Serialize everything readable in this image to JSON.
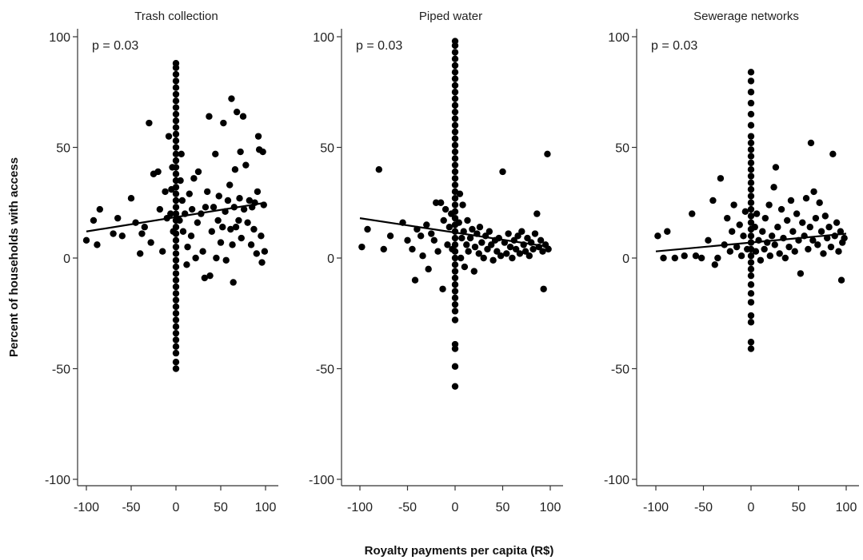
{
  "y_axis_title": "Percent of households with access",
  "x_axis_title": "Royalty payments per capita (R$)",
  "chart_data": [
    {
      "type": "scatter",
      "title": "Trash collection",
      "annotation": "p = 0.03",
      "xlim": [
        -100,
        100
      ],
      "ylim": [
        -100,
        100
      ],
      "xticks": [
        -100,
        -50,
        0,
        50,
        100
      ],
      "yticks": [
        100,
        50,
        0,
        -50,
        -100
      ],
      "fit_line": {
        "x": [
          -100,
          100
        ],
        "y": [
          12,
          25
        ]
      },
      "zero_column": [
        -50,
        -47,
        -43,
        -40,
        -37,
        -34,
        -31,
        -28,
        -25,
        -22,
        -19,
        -16,
        -13,
        -10,
        -7,
        -4,
        -1,
        2,
        5,
        8,
        11,
        14,
        17,
        20,
        23,
        26,
        29,
        32,
        35,
        38,
        41,
        44,
        47,
        50,
        53,
        56,
        59,
        62,
        65,
        68,
        71,
        74,
        77,
        80,
        83,
        86,
        88
      ],
      "points": [
        [
          -100,
          8
        ],
        [
          -92,
          17
        ],
        [
          -88,
          6
        ],
        [
          -85,
          22
        ],
        [
          -70,
          11
        ],
        [
          -65,
          18
        ],
        [
          -60,
          10
        ],
        [
          -50,
          27
        ],
        [
          -45,
          16
        ],
        [
          -40,
          2
        ],
        [
          -38,
          11
        ],
        [
          -35,
          14
        ],
        [
          -30,
          61
        ],
        [
          -28,
          7
        ],
        [
          -25,
          38
        ],
        [
          -20,
          39
        ],
        [
          -18,
          22
        ],
        [
          -15,
          3
        ],
        [
          -12,
          30
        ],
        [
          -10,
          18
        ],
        [
          -8,
          55
        ],
        [
          -6,
          20
        ],
        [
          -5,
          31
        ],
        [
          -4,
          41
        ],
        [
          -3,
          12
        ],
        [
          4,
          17
        ],
        [
          5,
          35
        ],
        [
          6,
          47
        ],
        [
          7,
          26
        ],
        [
          8,
          12
        ],
        [
          10,
          20
        ],
        [
          12,
          -3
        ],
        [
          13,
          5
        ],
        [
          15,
          29
        ],
        [
          17,
          10
        ],
        [
          18,
          22
        ],
        [
          20,
          36
        ],
        [
          22,
          0
        ],
        [
          24,
          16
        ],
        [
          25,
          39
        ],
        [
          28,
          20
        ],
        [
          30,
          3
        ],
        [
          32,
          -9
        ],
        [
          33,
          23
        ],
        [
          35,
          30
        ],
        [
          37,
          64
        ],
        [
          38,
          -8
        ],
        [
          40,
          12
        ],
        [
          42,
          23
        ],
        [
          44,
          47
        ],
        [
          45,
          0
        ],
        [
          47,
          17
        ],
        [
          48,
          28
        ],
        [
          50,
          7
        ],
        [
          52,
          14
        ],
        [
          53,
          61
        ],
        [
          55,
          21
        ],
        [
          56,
          -1
        ],
        [
          58,
          26
        ],
        [
          60,
          33
        ],
        [
          61,
          13
        ],
        [
          62,
          72
        ],
        [
          63,
          6
        ],
        [
          64,
          -11
        ],
        [
          65,
          23
        ],
        [
          66,
          40
        ],
        [
          67,
          14
        ],
        [
          68,
          66
        ],
        [
          70,
          17
        ],
        [
          71,
          27
        ],
        [
          72,
          48
        ],
        [
          73,
          9
        ],
        [
          75,
          64
        ],
        [
          76,
          22
        ],
        [
          78,
          42
        ],
        [
          80,
          16
        ],
        [
          82,
          26
        ],
        [
          84,
          6
        ],
        [
          85,
          23
        ],
        [
          87,
          13
        ],
        [
          88,
          25
        ],
        [
          90,
          2
        ],
        [
          91,
          30
        ],
        [
          92,
          55
        ],
        [
          93,
          49
        ],
        [
          95,
          10
        ],
        [
          96,
          -2
        ],
        [
          97,
          48
        ],
        [
          98,
          24
        ],
        [
          99,
          3
        ]
      ]
    },
    {
      "type": "scatter",
      "title": "Piped water",
      "annotation": "p = 0.03",
      "xlim": [
        -100,
        100
      ],
      "ylim": [
        -100,
        100
      ],
      "xticks": [
        -100,
        -50,
        0,
        50,
        100
      ],
      "yticks": [
        100,
        50,
        0,
        -50,
        -100
      ],
      "fit_line": {
        "x": [
          -100,
          100
        ],
        "y": [
          18,
          5
        ]
      },
      "zero_column": [
        -58,
        -49,
        -41,
        -39,
        -28,
        -24,
        -21,
        -18,
        -15,
        -12,
        -9,
        -6,
        -3,
        0,
        3,
        6,
        9,
        12,
        15,
        18,
        21,
        24,
        27,
        30,
        33,
        36,
        39,
        42,
        45,
        48,
        51,
        54,
        57,
        60,
        63,
        66,
        69,
        72,
        75,
        78,
        81,
        84,
        87,
        90,
        93,
        96,
        98
      ],
      "points": [
        [
          -98,
          5
        ],
        [
          -92,
          13
        ],
        [
          -80,
          40
        ],
        [
          -75,
          4
        ],
        [
          -68,
          10
        ],
        [
          -55,
          16
        ],
        [
          -50,
          8
        ],
        [
          -45,
          4
        ],
        [
          -42,
          -10
        ],
        [
          -40,
          13
        ],
        [
          -36,
          10
        ],
        [
          -34,
          1
        ],
        [
          -30,
          15
        ],
        [
          -28,
          -5
        ],
        [
          -25,
          11
        ],
        [
          -22,
          8
        ],
        [
          -20,
          25
        ],
        [
          -18,
          3
        ],
        [
          -15,
          25
        ],
        [
          -13,
          -14
        ],
        [
          -12,
          17
        ],
        [
          -10,
          22
        ],
        [
          -8,
          6
        ],
        [
          -6,
          14
        ],
        [
          -4,
          20
        ],
        [
          -3,
          4
        ],
        [
          4,
          16
        ],
        [
          5,
          29
        ],
        [
          6,
          0
        ],
        [
          7,
          9
        ],
        [
          8,
          24
        ],
        [
          9,
          12
        ],
        [
          10,
          -4
        ],
        [
          12,
          6
        ],
        [
          13,
          17
        ],
        [
          14,
          3
        ],
        [
          16,
          9
        ],
        [
          18,
          13
        ],
        [
          20,
          -6
        ],
        [
          21,
          5
        ],
        [
          23,
          11
        ],
        [
          25,
          2
        ],
        [
          26,
          14
        ],
        [
          28,
          7
        ],
        [
          30,
          0
        ],
        [
          32,
          10
        ],
        [
          34,
          4
        ],
        [
          36,
          12
        ],
        [
          38,
          6
        ],
        [
          40,
          -1
        ],
        [
          42,
          8
        ],
        [
          44,
          3
        ],
        [
          46,
          9
        ],
        [
          48,
          1
        ],
        [
          50,
          39
        ],
        [
          52,
          7
        ],
        [
          54,
          2
        ],
        [
          56,
          11
        ],
        [
          58,
          5
        ],
        [
          60,
          0
        ],
        [
          62,
          8
        ],
        [
          64,
          4
        ],
        [
          66,
          10
        ],
        [
          68,
          2
        ],
        [
          70,
          12
        ],
        [
          72,
          6
        ],
        [
          74,
          3
        ],
        [
          76,
          9
        ],
        [
          78,
          1
        ],
        [
          80,
          7
        ],
        [
          82,
          4
        ],
        [
          84,
          11
        ],
        [
          86,
          20
        ],
        [
          88,
          5
        ],
        [
          90,
          8
        ],
        [
          92,
          3
        ],
        [
          93,
          -14
        ],
        [
          95,
          6
        ],
        [
          97,
          47
        ],
        [
          98,
          4
        ]
      ]
    },
    {
      "type": "scatter",
      "title": "Sewerage networks",
      "annotation": "p = 0.03",
      "xlim": [
        -100,
        100
      ],
      "ylim": [
        -100,
        100
      ],
      "xticks": [
        -100,
        -50,
        0,
        50,
        100
      ],
      "yticks": [
        100,
        50,
        0,
        -50,
        -100
      ],
      "fit_line": {
        "x": [
          -100,
          100
        ],
        "y": [
          3,
          11
        ]
      },
      "zero_column": [
        -41,
        -38,
        -29,
        -26,
        -20,
        -16,
        -12,
        -8,
        -5,
        -2,
        1,
        4,
        7,
        10,
        13,
        16,
        19,
        22,
        25,
        28,
        31,
        34,
        37,
        40,
        43,
        46,
        49,
        52,
        55,
        60,
        65,
        70,
        75,
        80,
        84
      ],
      "points": [
        [
          -98,
          10
        ],
        [
          -92,
          0
        ],
        [
          -88,
          12
        ],
        [
          -80,
          0
        ],
        [
          -70,
          1
        ],
        [
          -62,
          20
        ],
        [
          -58,
          1
        ],
        [
          -52,
          0
        ],
        [
          -45,
          8
        ],
        [
          -40,
          26
        ],
        [
          -38,
          -3
        ],
        [
          -35,
          0
        ],
        [
          -32,
          36
        ],
        [
          -28,
          6
        ],
        [
          -25,
          18
        ],
        [
          -22,
          3
        ],
        [
          -20,
          12
        ],
        [
          -18,
          24
        ],
        [
          -15,
          5
        ],
        [
          -12,
          15
        ],
        [
          -10,
          1
        ],
        [
          -8,
          10
        ],
        [
          -6,
          21
        ],
        [
          -4,
          4
        ],
        [
          4,
          14
        ],
        [
          5,
          3
        ],
        [
          6,
          20
        ],
        [
          8,
          8
        ],
        [
          10,
          -1
        ],
        [
          12,
          12
        ],
        [
          14,
          4
        ],
        [
          15,
          18
        ],
        [
          17,
          7
        ],
        [
          19,
          24
        ],
        [
          20,
          1
        ],
        [
          22,
          10
        ],
        [
          24,
          32
        ],
        [
          25,
          6
        ],
        [
          26,
          41
        ],
        [
          28,
          14
        ],
        [
          30,
          2
        ],
        [
          32,
          22
        ],
        [
          34,
          9
        ],
        [
          36,
          0
        ],
        [
          38,
          17
        ],
        [
          40,
          5
        ],
        [
          42,
          26
        ],
        [
          44,
          12
        ],
        [
          46,
          3
        ],
        [
          48,
          20
        ],
        [
          50,
          8
        ],
        [
          52,
          -7
        ],
        [
          54,
          16
        ],
        [
          56,
          10
        ],
        [
          58,
          27
        ],
        [
          60,
          4
        ],
        [
          62,
          14
        ],
        [
          63,
          52
        ],
        [
          65,
          8
        ],
        [
          66,
          30
        ],
        [
          68,
          18
        ],
        [
          70,
          6
        ],
        [
          72,
          25
        ],
        [
          74,
          12
        ],
        [
          76,
          2
        ],
        [
          78,
          19
        ],
        [
          80,
          9
        ],
        [
          82,
          14
        ],
        [
          84,
          5
        ],
        [
          86,
          47
        ],
        [
          88,
          10
        ],
        [
          90,
          16
        ],
        [
          92,
          3
        ],
        [
          94,
          12
        ],
        [
          95,
          -10
        ],
        [
          96,
          7
        ],
        [
          98,
          9
        ]
      ]
    }
  ]
}
